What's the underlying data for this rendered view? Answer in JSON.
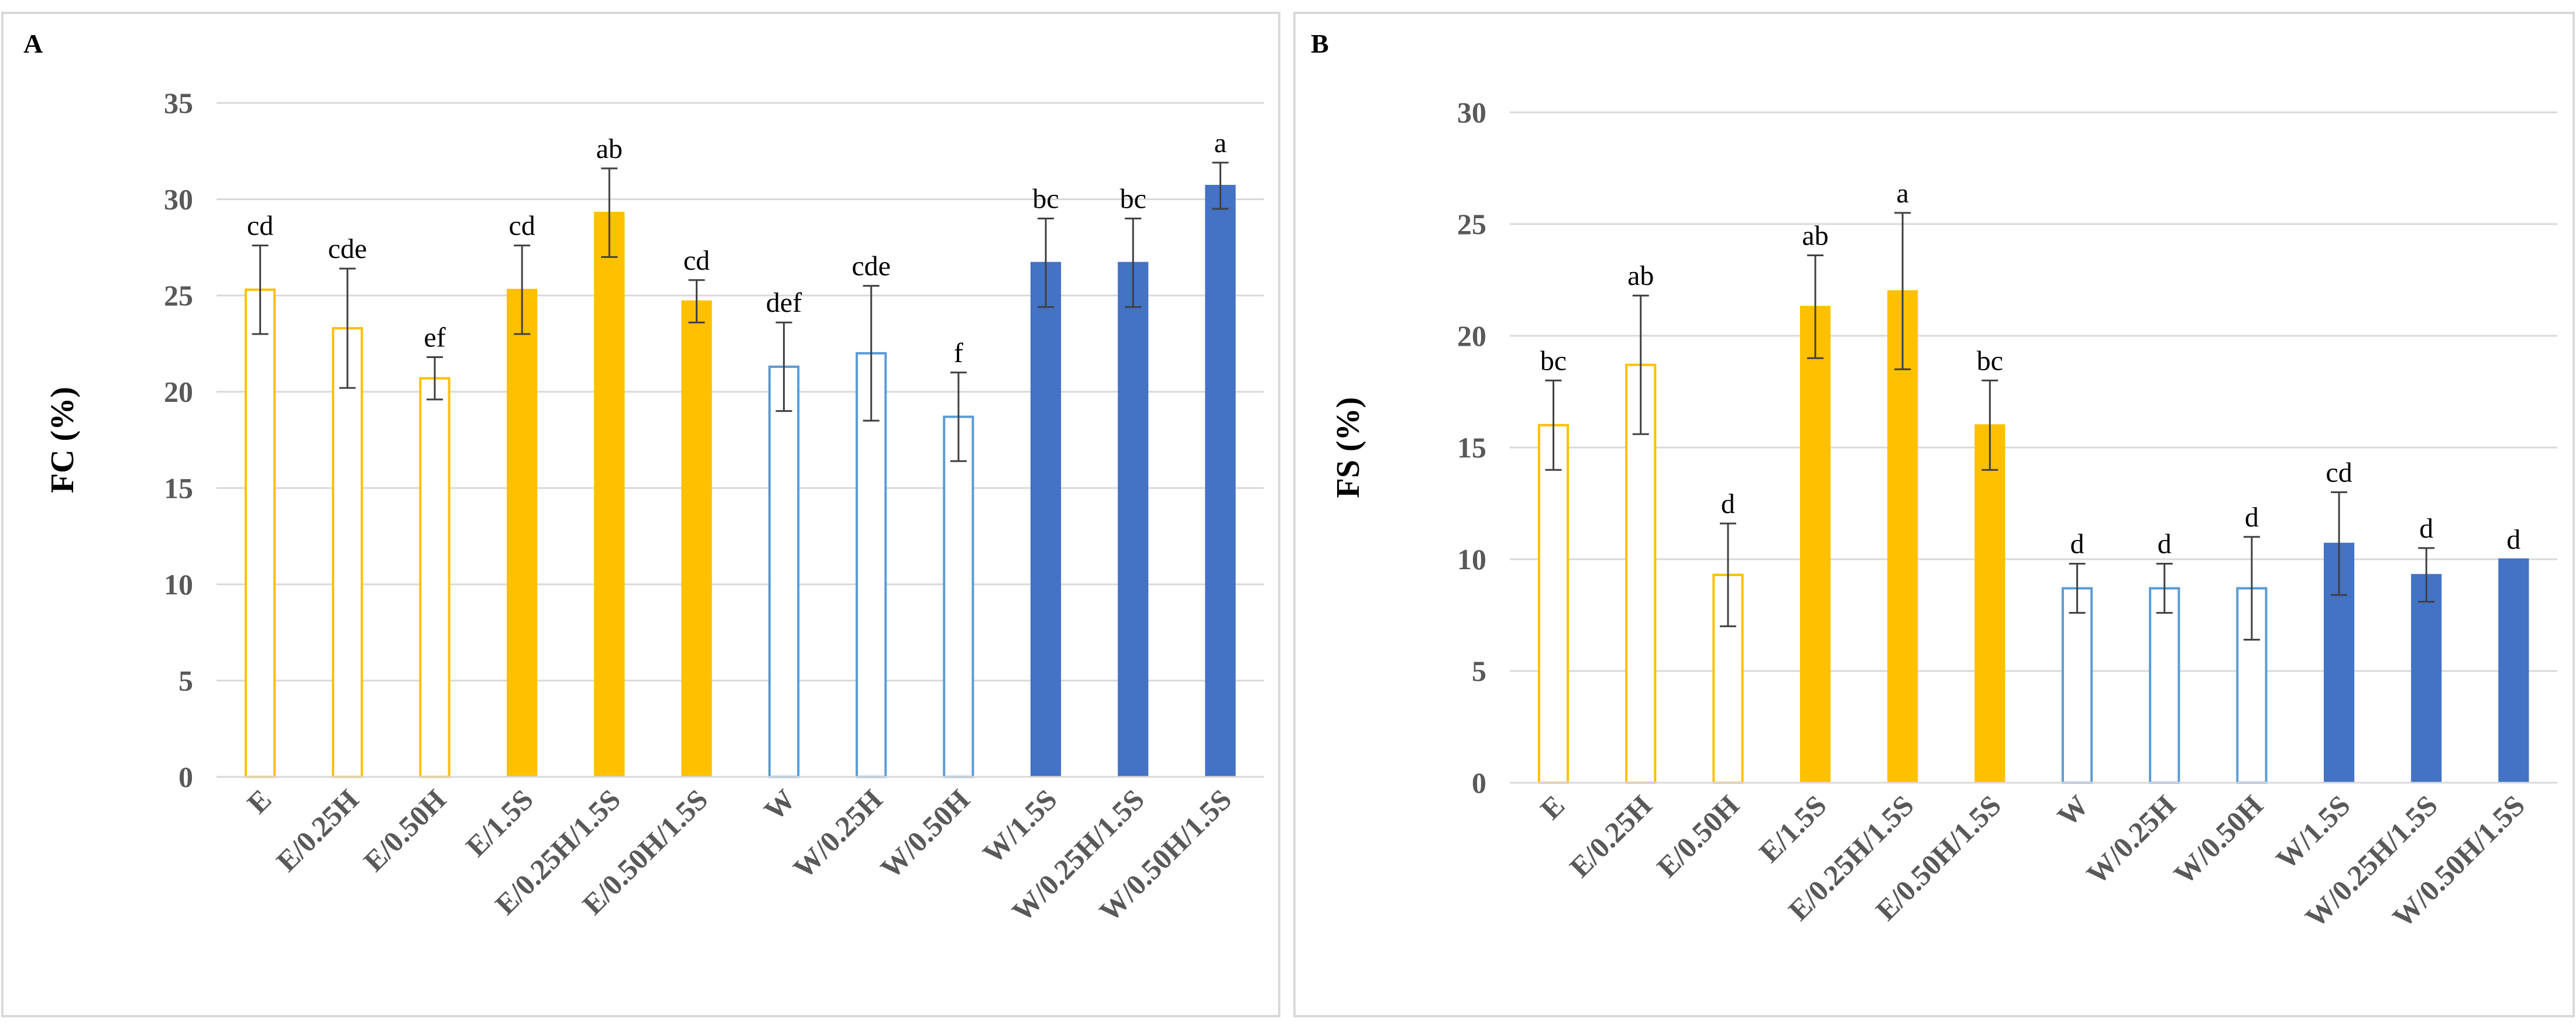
{
  "colors": {
    "yellow": "#FFC000",
    "lightblue": "#5B9BD5",
    "blue": "#4472C4"
  },
  "chart_data": [
    {
      "panel_label": "A",
      "type": "bar",
      "ylabel": "FC (%)",
      "ylim": [
        0,
        35
      ],
      "yticks": [
        0,
        5,
        10,
        15,
        20,
        25,
        30,
        35
      ],
      "grid": true,
      "categories": [
        "E",
        "E/0.25H",
        "E/0.50H",
        "E/1.5S",
        "E/0.25H/1.5S",
        "E/0.50H/1.5S",
        "W",
        "W/0.25H",
        "W/0.50H",
        "W/1.5S",
        "W/0.25H/1.5S",
        "W/0.50H/1.5S"
      ],
      "values": [
        25.3,
        23.3,
        20.7,
        25.3,
        29.3,
        24.7,
        21.3,
        22.0,
        18.7,
        26.7,
        26.7,
        30.7
      ],
      "errors": [
        2.3,
        3.1,
        1.1,
        2.3,
        2.3,
        1.1,
        2.3,
        3.5,
        2.3,
        2.3,
        2.3,
        1.2
      ],
      "letters": [
        "cd",
        "cde",
        "ef",
        "cd",
        "ab",
        "cd",
        "def",
        "cde",
        "f",
        "bc",
        "bc",
        "a"
      ],
      "bar_styles": [
        "yellow-outline",
        "yellow-outline",
        "yellow-outline",
        "yellow-filled",
        "yellow-filled",
        "yellow-filled",
        "lightblue-outline",
        "lightblue-outline",
        "lightblue-outline",
        "blue-filled",
        "blue-filled",
        "blue-filled"
      ]
    },
    {
      "panel_label": "B",
      "type": "bar",
      "ylabel": "FS (%)",
      "ylim": [
        0,
        30
      ],
      "yticks": [
        0,
        5,
        10,
        15,
        20,
        25,
        30
      ],
      "grid": true,
      "categories": [
        "E",
        "E/0.25H",
        "E/0.50H",
        "E/1.5S",
        "E/0.25H/1.5S",
        "E/0.50H/1.5S",
        "W",
        "W/0.25H",
        "W/0.50H",
        "W/1.5S",
        "W/0.25H/1.5S",
        "W/0.50H/1.5S"
      ],
      "values": [
        16.0,
        18.7,
        9.3,
        21.3,
        22.0,
        16.0,
        8.7,
        8.7,
        8.7,
        10.7,
        9.3,
        10.0
      ],
      "errors": [
        2.0,
        3.1,
        2.3,
        2.3,
        3.5,
        2.0,
        1.1,
        1.1,
        2.3,
        2.3,
        1.2,
        0.0
      ],
      "letters": [
        "bc",
        "ab",
        "d",
        "ab",
        "a",
        "bc",
        "d",
        "d",
        "d",
        "cd",
        "d",
        "d"
      ],
      "bar_styles": [
        "yellow-outline",
        "yellow-outline",
        "yellow-outline",
        "yellow-filled",
        "yellow-filled",
        "yellow-filled",
        "lightblue-outline",
        "lightblue-outline",
        "lightblue-outline",
        "blue-filled",
        "blue-filled",
        "blue-filled"
      ]
    }
  ]
}
